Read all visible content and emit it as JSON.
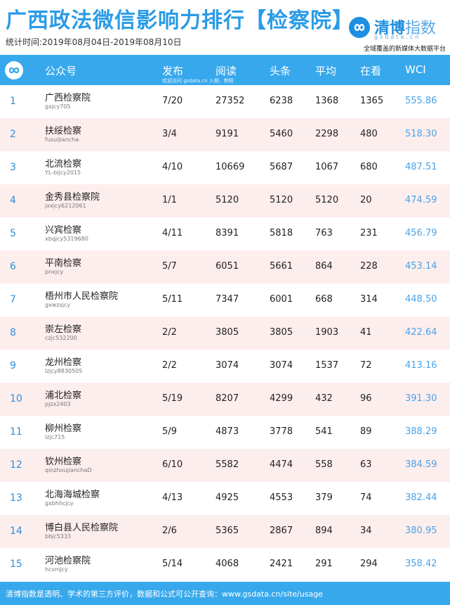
{
  "header": {
    "title": "广西政法微信影响力排行【检察院】",
    "period": "统计时间:2019年08月04日-2019年08月10日",
    "brand_name_a": "清博",
    "brand_name_b": "指数",
    "brand_sub": "gsdata.cn",
    "brand_slogan": "全域覆盖的新媒体大数据平台"
  },
  "columns": {
    "account": "公众号",
    "publish": "发布",
    "reads": "阅读",
    "headline": "头条",
    "average": "平均",
    "watching": "在看",
    "wci": "WCI"
  },
  "column_note": "欢迎访问 gsdata.cn 入榜、制榜",
  "rows": [
    {
      "rank": "1",
      "name": "广西检察院",
      "account": "gxjcy705",
      "publish": "7/20",
      "reads": "27352",
      "headline": "6238",
      "average": "1368",
      "watching": "1365",
      "wci": "555.86"
    },
    {
      "rank": "2",
      "name": "扶绥检察",
      "account": "fusuijiancha",
      "publish": "3/4",
      "reads": "9191",
      "headline": "5460",
      "average": "2298",
      "watching": "480",
      "wci": "518.30"
    },
    {
      "rank": "3",
      "name": "北流检察",
      "account": "YL-bljcy2015",
      "publish": "4/10",
      "reads": "10669",
      "headline": "5687",
      "average": "1067",
      "watching": "680",
      "wci": "487.51"
    },
    {
      "rank": "4",
      "name": "金秀县检察院",
      "account": "jxxjcy6212061",
      "publish": "1/1",
      "reads": "5120",
      "headline": "5120",
      "average": "5120",
      "watching": "20",
      "wci": "474.59"
    },
    {
      "rank": "5",
      "name": "兴宾检察",
      "account": "xbqjcy5319680",
      "publish": "4/11",
      "reads": "8391",
      "headline": "5818",
      "average": "763",
      "watching": "231",
      "wci": "456.79"
    },
    {
      "rank": "6",
      "name": "平南检察",
      "account": "pnxjcy",
      "publish": "5/7",
      "reads": "6051",
      "headline": "5661",
      "average": "864",
      "watching": "228",
      "wci": "453.14"
    },
    {
      "rank": "7",
      "name": "梧州市人民检察院",
      "account": "gxwzsjcy",
      "publish": "5/11",
      "reads": "7347",
      "headline": "6001",
      "average": "668",
      "watching": "314",
      "wci": "448.50"
    },
    {
      "rank": "8",
      "name": "崇左检察",
      "account": "czjc532200",
      "publish": "2/2",
      "reads": "3805",
      "headline": "3805",
      "average": "1903",
      "watching": "41",
      "wci": "422.64"
    },
    {
      "rank": "9",
      "name": "龙州检察",
      "account": "lzjcy8830505",
      "publish": "2/2",
      "reads": "3074",
      "headline": "3074",
      "average": "1537",
      "watching": "72",
      "wci": "413.16"
    },
    {
      "rank": "10",
      "name": "浦北检察",
      "account": "pjzx2403",
      "publish": "5/19",
      "reads": "8207",
      "headline": "4299",
      "average": "432",
      "watching": "96",
      "wci": "391.30"
    },
    {
      "rank": "11",
      "name": "柳州检察",
      "account": "lzjc715",
      "publish": "5/9",
      "reads": "4873",
      "headline": "3778",
      "average": "541",
      "watching": "89",
      "wci": "388.29"
    },
    {
      "rank": "12",
      "name": "钦州检察",
      "account": "qinzhoujianchaD",
      "publish": "6/10",
      "reads": "5582",
      "headline": "4474",
      "average": "558",
      "watching": "63",
      "wci": "384.59"
    },
    {
      "rank": "13",
      "name": "北海海城检察",
      "account": "gxbhhcjcy",
      "publish": "4/13",
      "reads": "4925",
      "headline": "4553",
      "average": "379",
      "watching": "74",
      "wci": "382.44"
    },
    {
      "rank": "14",
      "name": "博白县人民检察院",
      "account": "bbjc5333",
      "publish": "2/6",
      "reads": "5365",
      "headline": "2867",
      "average": "894",
      "watching": "34",
      "wci": "380.95"
    },
    {
      "rank": "15",
      "name": "河池检察院",
      "account": "hcsmjcy",
      "publish": "5/14",
      "reads": "4068",
      "headline": "2421",
      "average": "291",
      "watching": "294",
      "wci": "358.42"
    }
  ],
  "footer": "清博指数是透明、学术的第三方评价，数据和公式可公开查询：www.gsdata.cn/site/usage",
  "colors": {
    "accent": "#37a8ec",
    "row_alt": "#fdeeee",
    "title": "#2a9be6",
    "wci": "#4aa3e8"
  },
  "icons": [
    "gsdata-logo-icon",
    "gsdata-header-logo-icon"
  ]
}
